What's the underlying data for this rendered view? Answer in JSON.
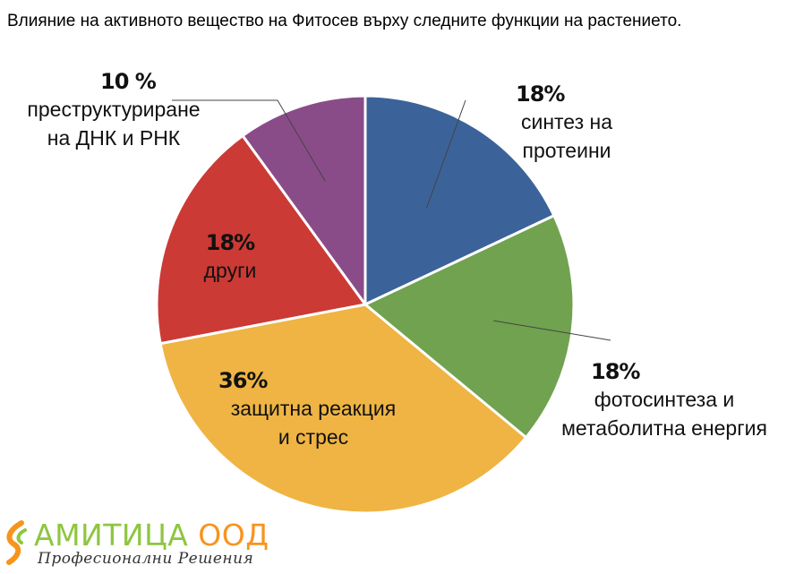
{
  "chart_data": {
    "type": "pie",
    "title": "Влияние на активното вещество на Фитосев върху следните функции на растението.",
    "slices": [
      {
        "pct_label": "18%",
        "label": "синтез на\nпротеини",
        "value": 18,
        "color": "#3b6399"
      },
      {
        "pct_label": "18%",
        "label": "фотосинтеза и\nметаболитна енергия",
        "value": 18,
        "color": "#70a250"
      },
      {
        "pct_label": "36%",
        "label": "защитна реакция\nи стрес",
        "value": 36,
        "color": "#efb443"
      },
      {
        "pct_label": "18%",
        "label": "други",
        "value": 18,
        "color": "#cb3a35"
      },
      {
        "pct_label": "10 %",
        "label": "преструктуриране\nна ДНК и РНК",
        "value": 10,
        "color": "#8a4c89"
      }
    ]
  },
  "logo": {
    "name_part1": "АМИТИЦА",
    "name_part2": " ООД",
    "tagline": "Професионални Решения",
    "primary_color": "#8dc63f",
    "accent_color": "#f7941d"
  }
}
